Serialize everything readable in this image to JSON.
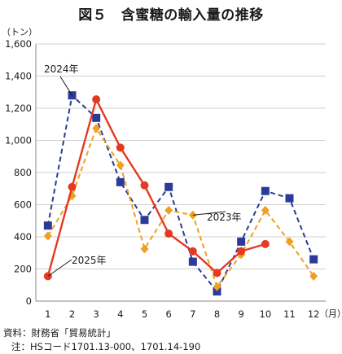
{
  "figure": {
    "title": "図５　含蜜糖の輸入量の推移",
    "source": "資料：財務省「貿易統計」",
    "note": "注：HSコード1701.13-000、1701.14-190"
  },
  "chart_data": {
    "type": "line",
    "title": "図５　含蜜糖の輸入量の推移",
    "ylabel": "（トン）",
    "xlabel": "（月）",
    "x": [
      1,
      2,
      3,
      4,
      5,
      6,
      7,
      8,
      9,
      10,
      11,
      12
    ],
    "x_tick_labels": [
      "1",
      "2",
      "3",
      "4",
      "5",
      "6",
      "7",
      "8",
      "9",
      "10",
      "11",
      "12"
    ],
    "ylim": [
      0,
      1600
    ],
    "y_ticks": [
      0,
      200,
      400,
      600,
      800,
      1000,
      1200,
      1400,
      1600
    ],
    "y_tick_labels": [
      "0",
      "200",
      "400",
      "600",
      "800",
      "1,000",
      "1,200",
      "1,400",
      "1,600"
    ],
    "grid": "horizontal",
    "series": [
      {
        "name": "2024年",
        "color": "#2b3b97",
        "line_style": "dashed",
        "marker": "square",
        "values": [
          470,
          1280,
          1140,
          740,
          505,
          710,
          245,
          60,
          370,
          685,
          640,
          260
        ]
      },
      {
        "name": "2023年",
        "color": "#f0a020",
        "line_style": "dashed",
        "marker": "diamond",
        "values": [
          405,
          655,
          1075,
          845,
          325,
          565,
          535,
          90,
          290,
          565,
          370,
          155
        ]
      },
      {
        "name": "2025年",
        "color": "#e43a22",
        "line_style": "solid",
        "marker": "circle",
        "values": [
          155,
          710,
          1255,
          955,
          720,
          420,
          310,
          175,
          310,
          355,
          null,
          null
        ]
      }
    ],
    "annotations": [
      {
        "text": "2024年",
        "series": "2024年"
      },
      {
        "text": "2023年",
        "series": "2023年"
      },
      {
        "text": "2025年",
        "series": "2025年"
      }
    ]
  }
}
